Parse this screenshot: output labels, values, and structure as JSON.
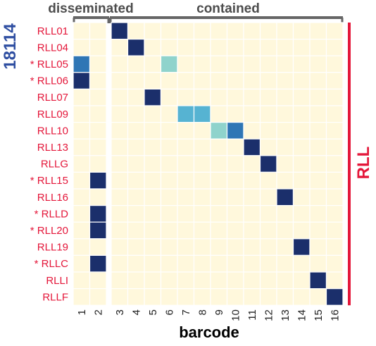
{
  "chart_data": {
    "type": "heatmap",
    "sample_label": "18114",
    "side_label": "RLL",
    "xlabel": "barcode",
    "column_groups": [
      {
        "name": "disseminated",
        "columns": [
          "1",
          "2"
        ]
      },
      {
        "name": "contained",
        "columns": [
          "3",
          "4",
          "5",
          "6",
          "7",
          "8",
          "9",
          "10",
          "11",
          "12",
          "13",
          "14",
          "15",
          "16"
        ]
      }
    ],
    "columns": [
      "1",
      "2",
      "3",
      "4",
      "5",
      "6",
      "7",
      "8",
      "9",
      "10",
      "11",
      "12",
      "13",
      "14",
      "15",
      "16"
    ],
    "rows": [
      "RLL01",
      "RLL04",
      "* RLL05",
      "* RLL06",
      "RLL07",
      "RLL09",
      "RLL10",
      "RLL13",
      "RLLG",
      "* RLL15",
      "RLL16",
      "* RLLD",
      "* RLL20",
      "RLL19",
      "* RLLC",
      "RLLI",
      "RLLF"
    ],
    "values": [
      [
        0,
        0,
        1,
        0,
        0,
        0,
        0,
        0,
        0,
        0,
        0,
        0,
        0,
        0,
        0,
        0
      ],
      [
        0,
        0,
        0,
        1,
        0,
        0,
        0,
        0,
        0,
        0,
        0,
        0,
        0,
        0,
        0,
        0
      ],
      [
        0.6,
        0,
        0,
        0,
        0,
        0.35,
        0,
        0,
        0,
        0,
        0,
        0,
        0,
        0,
        0,
        0
      ],
      [
        1,
        0,
        0,
        0,
        0,
        0,
        0,
        0,
        0,
        0,
        0,
        0,
        0,
        0,
        0,
        0
      ],
      [
        0,
        0,
        0,
        0,
        1,
        0,
        0,
        0,
        0,
        0,
        0,
        0,
        0,
        0,
        0,
        0
      ],
      [
        0,
        0,
        0,
        0,
        0,
        0,
        0.45,
        0.45,
        0,
        0,
        0,
        0,
        0,
        0,
        0,
        0
      ],
      [
        0,
        0,
        0,
        0,
        0,
        0,
        0,
        0,
        0.35,
        0.65,
        0,
        0,
        0,
        0,
        0,
        0
      ],
      [
        0,
        0,
        0,
        0,
        0,
        0,
        0,
        0,
        0,
        0,
        1,
        0,
        0,
        0,
        0,
        0
      ],
      [
        0,
        0,
        0,
        0,
        0,
        0,
        0,
        0,
        0,
        0,
        0,
        1,
        0,
        0,
        0,
        0
      ],
      [
        0,
        1,
        0,
        0,
        0,
        0,
        0,
        0,
        0,
        0,
        0,
        0,
        0,
        0,
        0,
        0
      ],
      [
        0,
        0,
        0,
        0,
        0,
        0,
        0,
        0,
        0,
        0,
        0,
        0,
        1,
        0,
        0,
        0
      ],
      [
        0,
        1,
        0,
        0,
        0,
        0,
        0,
        0,
        0,
        0,
        0,
        0,
        0,
        0,
        0,
        0
      ],
      [
        0,
        1,
        0,
        0,
        0,
        0,
        0,
        0,
        0,
        0,
        0,
        0,
        0,
        0,
        0,
        0
      ],
      [
        0,
        0,
        0,
        0,
        0,
        0,
        0,
        0,
        0,
        0,
        0,
        0,
        0,
        1,
        0,
        0
      ],
      [
        0,
        1,
        0,
        0,
        0,
        0,
        0,
        0,
        0,
        0,
        0,
        0,
        0,
        0,
        0,
        0
      ],
      [
        0,
        0,
        0,
        0,
        0,
        0,
        0,
        0,
        0,
        0,
        0,
        0,
        0,
        0,
        1,
        0
      ],
      [
        0,
        0,
        0,
        0,
        0,
        0,
        0,
        0,
        0,
        0,
        0,
        0,
        0,
        0,
        0,
        1
      ]
    ],
    "colors": {
      "background": "#fff8dc",
      "low": "#8fd3cc",
      "mid_low": "#56b3d2",
      "mid": "#2f76b5",
      "high": "#1b2f6b",
      "row_label": "#e4173a",
      "sample_label": "#2e4ea1",
      "group_bar": "#666666",
      "side_bar": "#e4173a"
    }
  }
}
